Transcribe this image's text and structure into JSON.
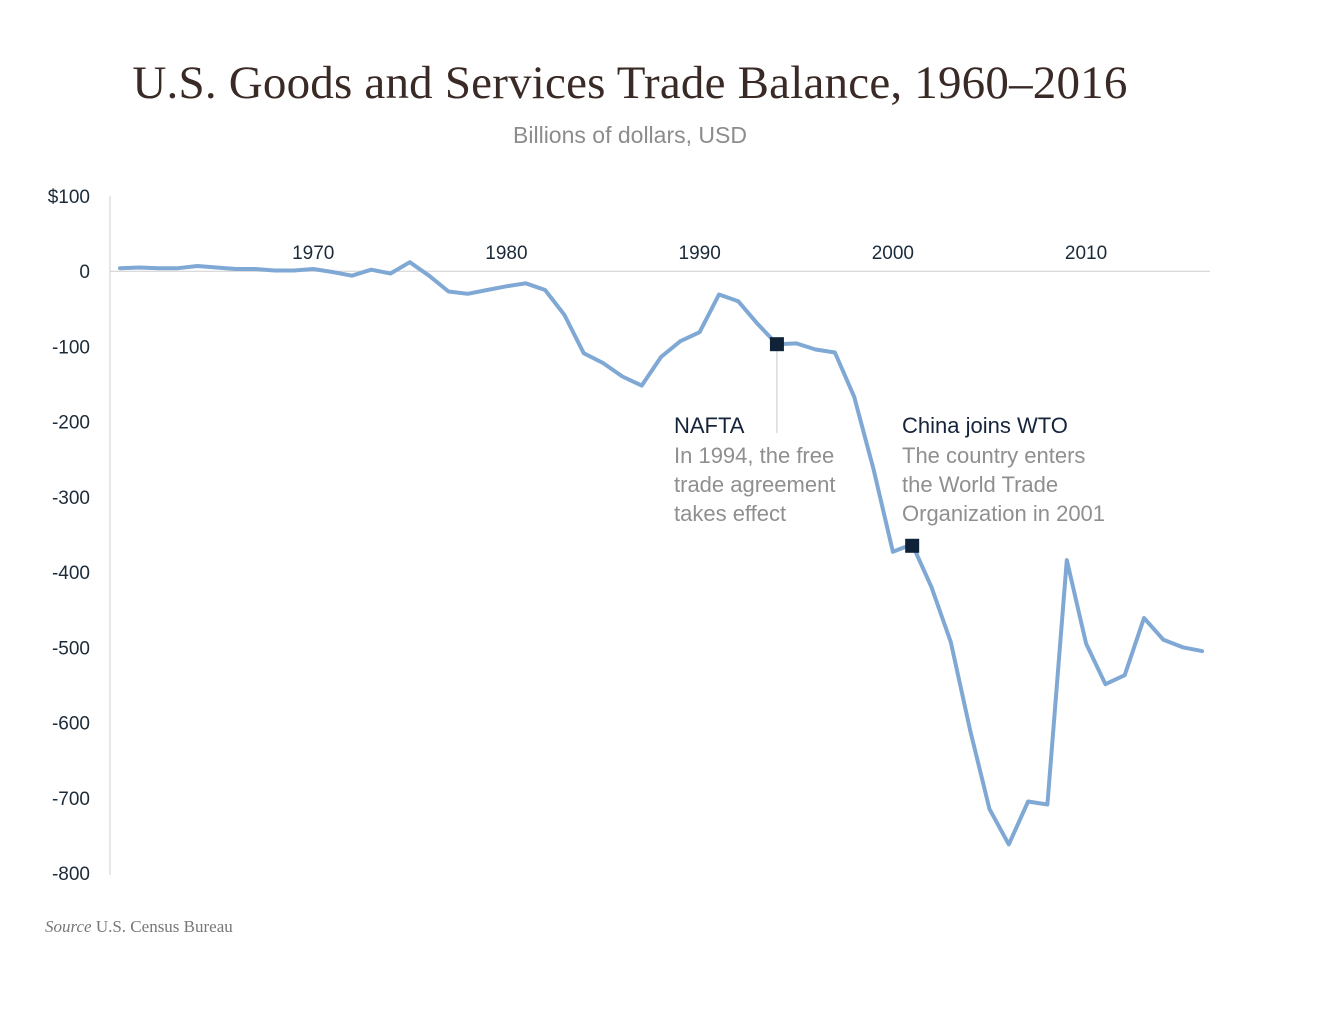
{
  "title": "U.S. Goods and Services Trade Balance, 1960–2016",
  "subtitle": "Billions of dollars, USD",
  "source_label": "Source",
  "source_text": "U.S. Census Bureau",
  "colors": {
    "line": "#7fa8d4",
    "marker": "#0f2238",
    "axis": "#cfcfcf",
    "title": "#3a2a26"
  },
  "chart_data": {
    "type": "line",
    "title": "U.S. Goods and Services Trade Balance, 1960–2016",
    "subtitle": "Billions of dollars, USD",
    "xlabel": "",
    "ylabel": "",
    "xlim": [
      1960,
      2016
    ],
    "ylim": [
      -800,
      100
    ],
    "x_ticks": [
      1970,
      1980,
      1990,
      2000,
      2010
    ],
    "x_tick_labels": [
      "1970",
      "1980",
      "1990",
      "2000",
      "2010"
    ],
    "y_ticks": [
      100,
      0,
      -100,
      -200,
      -300,
      -400,
      -500,
      -600,
      -700,
      -800
    ],
    "y_tick_labels": [
      "$100",
      "0",
      "-100",
      "-200",
      "-300",
      "-400",
      "-500",
      "-600",
      "-700",
      "-800"
    ],
    "grid": false,
    "series": [
      {
        "x": [
          1960,
          1961,
          1962,
          1963,
          1964,
          1965,
          1966,
          1967,
          1968,
          1969,
          1970,
          1971,
          1972,
          1973,
          1974,
          1975,
          1976,
          1977,
          1978,
          1979,
          1980,
          1981,
          1982,
          1983,
          1984,
          1985,
          1986,
          1987,
          1988,
          1989,
          1990,
          1991,
          1992,
          1993,
          1994,
          1995,
          1996,
          1997,
          1998,
          1999,
          2000,
          2001,
          2002,
          2003,
          2004,
          2005,
          2006,
          2007,
          2008,
          2009,
          2010,
          2011,
          2012,
          2013,
          2014,
          2015,
          2016
        ],
        "values": [
          4,
          5,
          4,
          4,
          7,
          5,
          3,
          3,
          1,
          1,
          3,
          -1,
          -6,
          2,
          -3,
          12,
          -6,
          -27,
          -30,
          -25,
          -20,
          -16,
          -25,
          -58,
          -109,
          -122,
          -140,
          -152,
          -114,
          -93,
          -81,
          -31,
          -40,
          -70,
          -97,
          -96,
          -104,
          -108,
          -167,
          -263,
          -373,
          -363,
          -420,
          -493,
          -610,
          -715,
          -762,
          -705,
          -709,
          -384,
          -495,
          -549,
          -537,
          -461,
          -490,
          -500,
          -505
        ]
      }
    ],
    "annotations": [
      {
        "x": 1994,
        "y": -97,
        "title": "NAFTA",
        "lines": [
          "In 1994, the free",
          "trade agreement",
          "takes effect"
        ]
      },
      {
        "x": 2001,
        "y": -365,
        "title": "China joins WTO",
        "lines": [
          "The country enters",
          "the World Trade",
          "Organization in 2001"
        ]
      }
    ]
  }
}
